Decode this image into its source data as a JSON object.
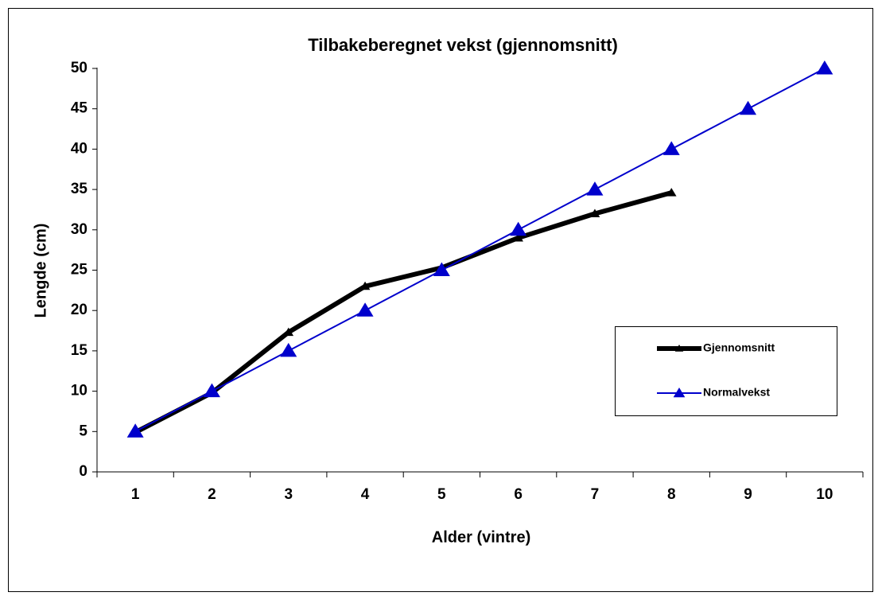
{
  "chart_data": {
    "type": "line",
    "title": "Tilbakeberegnet vekst (gjennomsnitt)",
    "x_label": "Alder (vintre)",
    "y_label": "Lengde (cm)",
    "categories": [
      "1",
      "2",
      "3",
      "4",
      "5",
      "6",
      "7",
      "8",
      "9",
      "10"
    ],
    "series": [
      {
        "name": "Gjennomsnitt",
        "color": "#000000",
        "values": [
          4.9,
          9.8,
          17.3,
          23.0,
          25.3,
          29.0,
          32.0,
          34.6,
          null,
          null
        ]
      },
      {
        "name": "Normalvekst",
        "color": "#0000cc",
        "values": [
          5,
          10,
          15,
          20,
          25,
          30,
          35,
          40,
          45,
          50
        ]
      }
    ],
    "ylim": [
      0,
      50
    ],
    "yticks": [
      0,
      5,
      10,
      15,
      20,
      25,
      30,
      35,
      40,
      45,
      50
    ],
    "grid": false,
    "legend": "right"
  }
}
